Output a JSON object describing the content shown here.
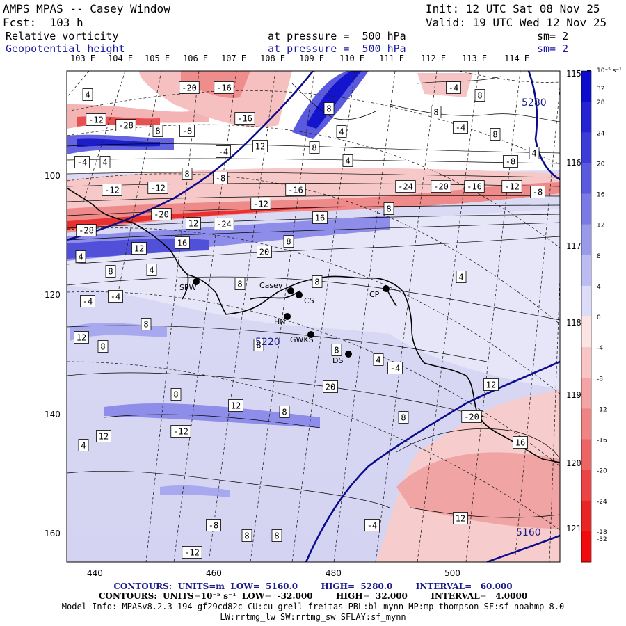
{
  "header": {
    "title": "AMPS MPAS -- Casey Window",
    "fcst": "Fcst:  103 h",
    "init": "Init: 12 UTC Sat 08 Nov 25",
    "valid": "Valid: 19 UTC Wed 12 Nov 25",
    "field1": "Relative vorticity",
    "field2": "Geopotential height",
    "pressure1": "at pressure =  500 hPa",
    "pressure2": "at pressure =  500 hPa",
    "sm1": "sm= 2",
    "sm2": "sm= 2"
  },
  "colors": {
    "blue_fill": "#3a3ad8",
    "red_fill": "#e83030",
    "height_contour": "#0b0b8c"
  },
  "lon_labels_top": [
    "103 E",
    "104 E",
    "105 E",
    "106 E",
    "107 E",
    "108 E",
    "109 E",
    "110 E",
    "111 E",
    "112 E",
    "113 E",
    "114 E"
  ],
  "lon_labels_right": [
    "115 E",
    "116 E",
    "117 E",
    "118 E",
    "119 E",
    "120 E",
    "121 E"
  ],
  "x_ticks": [
    "440",
    "460",
    "480",
    "500"
  ],
  "y_ticks": [
    "100",
    "120",
    "140",
    "160"
  ],
  "colorbar": {
    "unit": "10⁻⁵ s⁻¹",
    "levels": [
      "32",
      "28",
      "24",
      "20",
      "16",
      "12",
      "8",
      "4",
      "0",
      "-4",
      "-8",
      "-12",
      "-16",
      "-20",
      "-24",
      "-28",
      "-32"
    ]
  },
  "stations": [
    "SPW",
    "Casey",
    "CS",
    "HN",
    "GWKS",
    "DS",
    "CP"
  ],
  "contour_labels": {
    "vorticity": [
      "4",
      "-20",
      "-16",
      "-4",
      "8",
      "-16",
      "8",
      "4",
      "8",
      "-12",
      "-28",
      "8",
      "-4",
      "-8",
      "8",
      "-4",
      "4",
      "4",
      "-4",
      "12",
      "8",
      "-8",
      "4",
      "-12",
      "8",
      "-12",
      "-8",
      "-16",
      "-24",
      "-20",
      "-16",
      "-12",
      "-8",
      "-12",
      "-20",
      "-28",
      "12",
      "-24",
      "8",
      "16",
      "12",
      "8",
      "20",
      "4",
      "16",
      "8",
      "4",
      "-4",
      "8",
      "8",
      "4",
      "8",
      "-4",
      "8",
      "8",
      "12",
      "8",
      "4",
      "-4",
      "12",
      "8",
      "20",
      "12",
      "8",
      "12",
      "-20",
      "16",
      "-4",
      "12",
      "-12",
      "8",
      "8",
      "-8",
      "-12",
      "4",
      "8"
    ],
    "height": [
      "5280",
      "5160",
      "5220"
    ]
  },
  "footer": {
    "contours1": "CONTOURS:  UNITS=m  LOW=  5160.0        HIGH=  5280.0        INTERVAL=   60.000",
    "contours2": "CONTOURS:  UNITS=10⁻⁵ s⁻¹  LOW=  -32.000        HIGH=  32.000        INTERVAL=   4.0000",
    "model_info": "Model Info: MPASv8.2.3-194-gf29cd82c CU:cu_grell_freitas PBL:bl_mynn MP:mp_thompson SF:sf_noahmp 8.0",
    "model_info2": "LW:rrtmg_lw SW:rrtmg_sw SFLAY:sf_mynn"
  }
}
